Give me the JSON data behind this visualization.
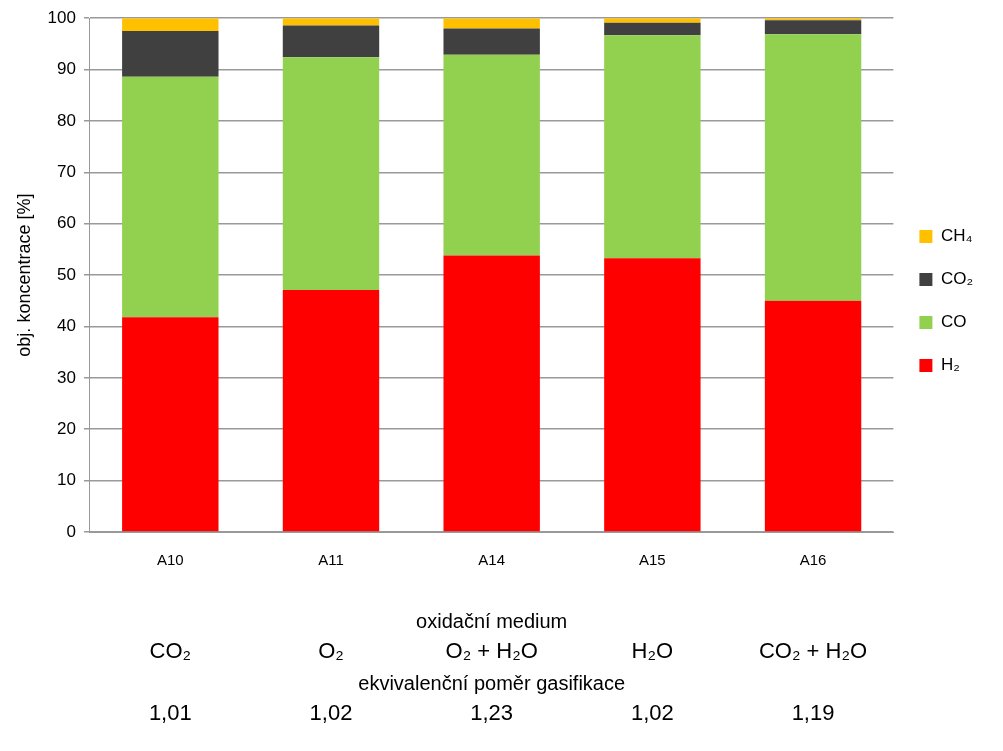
{
  "chart_data": {
    "type": "bar",
    "stacked": true,
    "ylabel": "obj. koncentrace [%]",
    "categories": [
      "A10",
      "A11",
      "A14",
      "A15",
      "A16"
    ],
    "series": [
      {
        "name": "H₂",
        "color": "#ff0000",
        "values": [
          41.8,
          47.1,
          53.8,
          53.3,
          45.0
        ]
      },
      {
        "name": "CO",
        "color": "#92d050",
        "values": [
          46.8,
          45.3,
          39.1,
          43.4,
          51.9
        ]
      },
      {
        "name": "CO₂",
        "color": "#404040",
        "values": [
          8.9,
          6.2,
          5.1,
          2.4,
          2.7
        ]
      },
      {
        "name": "CH₄",
        "color": "#ffc000",
        "values": [
          2.5,
          1.4,
          2.0,
          0.9,
          0.4
        ]
      }
    ],
    "ylim": [
      0,
      100
    ],
    "yticks": [
      0,
      10,
      20,
      30,
      40,
      50,
      60,
      70,
      80,
      90,
      100
    ],
    "grid": "y",
    "legend": "right",
    "annotations": [
      "oxidační medium",
      "CO₂",
      "O₂",
      "O₂ + H₂O",
      "H₂O",
      "CO₂ + H₂O",
      "ekvivalenční poměr gasifikace",
      "1,01",
      "1,02",
      "1,23",
      "1,02",
      "1,19"
    ]
  }
}
